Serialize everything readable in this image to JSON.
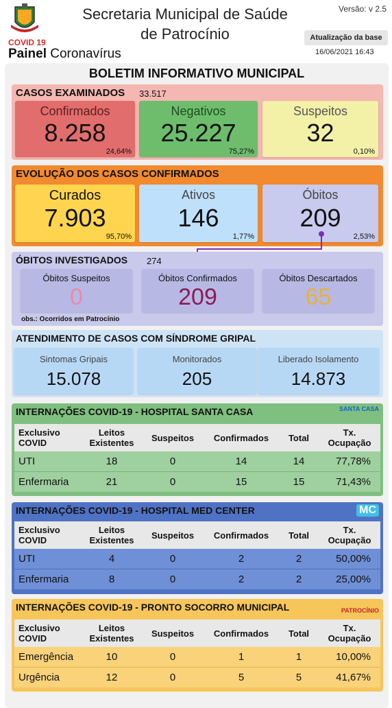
{
  "header": {
    "title_line1": "Secretaria Municipal de Saúde",
    "title_line2": "de Patrocínio",
    "covid_label": "COVID 19",
    "painel_bold": "Painel",
    "painel_rest": " Coronavírus",
    "version": "Versão: v 2.5",
    "update_button": "Atualização da base",
    "datetime": "16/06/2021 16:43"
  },
  "boletim_title": "BOLETIM INFORMATIVO MUNICIPAL",
  "casos": {
    "title": "CASOS EXAMINADOS",
    "total": "33.517",
    "confirmados": {
      "label": "Confirmados",
      "value": "8.258",
      "pct": "24,64%"
    },
    "negativos": {
      "label": "Negativos",
      "value": "25.227",
      "pct": "75,27%"
    },
    "suspeitos": {
      "label": "Suspeitos",
      "value": "32",
      "pct": "0,10%"
    }
  },
  "evolucao": {
    "title": "EVOLUÇÃO DOS CASOS CONFIRMADOS",
    "curados": {
      "label": "Curados",
      "value": "7.903",
      "pct": "95,70%"
    },
    "ativos": {
      "label": "Ativos",
      "value": "146",
      "pct": "1,77%"
    },
    "obitos": {
      "label": "Óbitos",
      "value": "209",
      "pct": "2,53%"
    }
  },
  "investigados": {
    "title": "ÓBITOS INVESTIGADOS",
    "total": "274",
    "suspeitos": {
      "label": "Óbitos Suspeitos",
      "value": "0"
    },
    "confirmados": {
      "label": "Óbitos Confirmados",
      "value": "209"
    },
    "descartados": {
      "label": "Óbitos Descartados",
      "value": "65"
    },
    "obs": "obs.: Ocorridos em Patrocínio"
  },
  "atendimento": {
    "title": "ATENDIMENTO DE CASOS COM SÍNDROME GRIPAL",
    "sintomas": {
      "label": "Sintomas Gripais",
      "value": "15.078"
    },
    "monitorados": {
      "label": "Monitorados",
      "value": "205"
    },
    "liberado": {
      "label": "Liberado Isolamento",
      "value": "14.873"
    }
  },
  "columns": {
    "c1a": "Exclusivo",
    "c1b": "COVID",
    "c2a": "Leitos",
    "c2b": "Existentes",
    "c3": "Suspeitos",
    "c4": "Confirmados",
    "c5": "Total",
    "c6a": "Tx.",
    "c6b": "Ocupação"
  },
  "santa_casa": {
    "title": "INTERNAÇÕES COVID-19 - HOSPITAL SANTA CASA",
    "badge": "SANTA CASA",
    "rows": [
      {
        "tipo": "UTI",
        "leitos": "18",
        "suspeitos": "0",
        "confirmados": "14",
        "total": "14",
        "taxa": "77,78%"
      },
      {
        "tipo": "Enfermaria",
        "leitos": "21",
        "suspeitos": "0",
        "confirmados": "15",
        "total": "15",
        "taxa": "71,43%"
      }
    ]
  },
  "med_center": {
    "title": "INTERNAÇÕES COVID-19 - HOSPITAL MED CENTER",
    "badge": "MC",
    "rows": [
      {
        "tipo": "UTI",
        "leitos": "4",
        "suspeitos": "0",
        "confirmados": "2",
        "total": "2",
        "taxa": "50,00%"
      },
      {
        "tipo": "Enfermaria",
        "leitos": "8",
        "suspeitos": "0",
        "confirmados": "2",
        "total": "2",
        "taxa": "25,00%"
      }
    ]
  },
  "pronto_socorro": {
    "title": "INTERNAÇÕES COVID-19 - PRONTO SOCORRO MUNICIPAL",
    "badge": "PATROCÍNIO",
    "rows": [
      {
        "tipo": "Emergência",
        "leitos": "10",
        "suspeitos": "0",
        "confirmados": "1",
        "total": "1",
        "taxa": "10,00%"
      },
      {
        "tipo": "Urgência",
        "leitos": "12",
        "suspeitos": "0",
        "confirmados": "5",
        "total": "5",
        "taxa": "41,67%"
      }
    ]
  },
  "colors": {
    "casos_bg": "#f5b7b1",
    "confirmados_card": "#e26d6d",
    "negativos_card": "#6dbd6d",
    "suspeitos_card": "#f3f0a8",
    "evolucao_bg": "#f28a2f",
    "curados_card": "#ffd54f",
    "ativos_card": "#bfe0fb",
    "obitos_card": "#c8caee",
    "investigados_bg": "#c9c9ec",
    "atendimento_bg": "#cfe3f7",
    "santa_casa": "#7fbf7f",
    "med_center": "#4f72c4",
    "pronto_socorro": "#f7c65a"
  }
}
